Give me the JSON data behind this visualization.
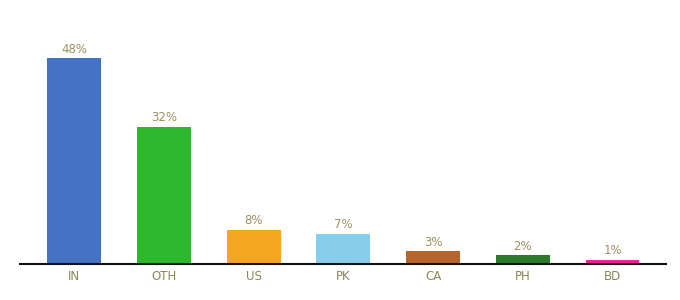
{
  "categories": [
    "IN",
    "OTH",
    "US",
    "PK",
    "CA",
    "PH",
    "BD"
  ],
  "values": [
    48,
    32,
    8,
    7,
    3,
    2,
    1
  ],
  "bar_colors": [
    "#4472c4",
    "#2db82d",
    "#f5a623",
    "#87ceeb",
    "#b8632a",
    "#2a7a2a",
    "#f020a0"
  ],
  "labels": [
    "48%",
    "32%",
    "8%",
    "7%",
    "3%",
    "2%",
    "1%"
  ],
  "background_color": "#ffffff",
  "label_color": "#a09060",
  "label_fontsize": 8.5,
  "tick_fontsize": 8.5,
  "tick_color": "#888855",
  "ylim": [
    0,
    56
  ],
  "bar_width": 0.6,
  "figsize": [
    6.8,
    3.0
  ],
  "dpi": 100
}
